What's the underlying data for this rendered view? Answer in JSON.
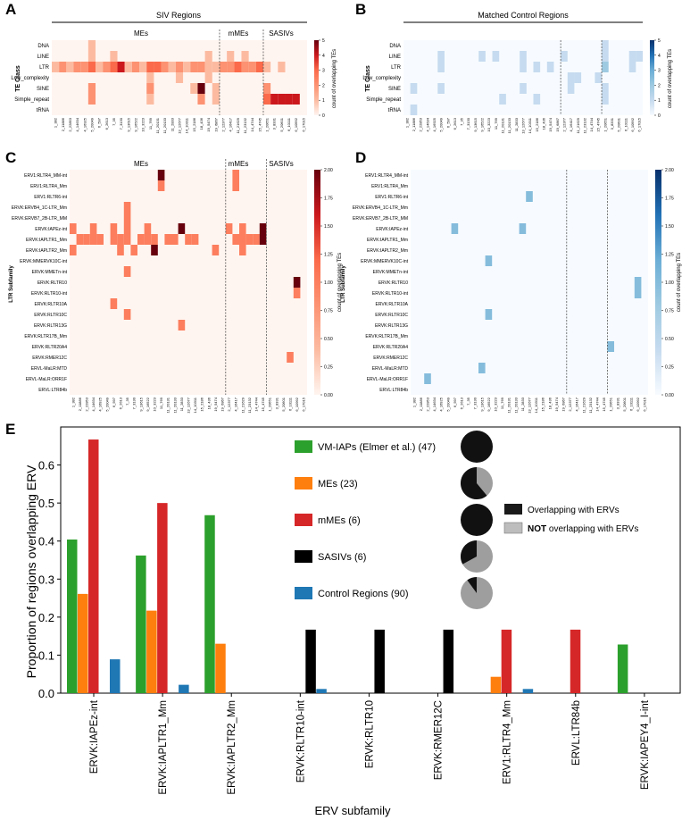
{
  "figure": {
    "panels": {
      "A": {
        "letter": "A",
        "header": "SIV Regions",
        "groups": [
          "MEs",
          "mMEs",
          "SASIVs"
        ],
        "ylabel": "TE Class",
        "cbar_label": "count of overlapping TEs",
        "cbar_ticks": [
          "0",
          "1",
          "2",
          "3",
          "4",
          "5"
        ],
        "cmax": 5,
        "palette": "reds"
      },
      "B": {
        "letter": "B",
        "header": "Matched Control Regions",
        "ylabel": "TE Class",
        "cbar_label": "count of overlapping TEs",
        "cbar_ticks": [
          "0",
          "1",
          "2",
          "3",
          "4",
          "5"
        ],
        "cmax": 5,
        "palette": "blues"
      },
      "C": {
        "letter": "C",
        "groups": [
          "MEs",
          "mMEs",
          "SASIVs"
        ],
        "ylabel": "LTR Subfamily",
        "cbar_label": "count of overlapping TEs",
        "cbar_ticks": [
          "0.00",
          "0.25",
          "0.50",
          "0.75",
          "1.00",
          "1.25",
          "1.50",
          "1.75",
          "2.00"
        ],
        "cmax": 2,
        "palette": "reds"
      },
      "D": {
        "letter": "D",
        "ylabel": "LTR Subfamily",
        "cbar_label": "count of overlapping TEs",
        "cbar_ticks": [
          "0.00",
          "0.25",
          "0.50",
          "0.75",
          "1.00",
          "1.25",
          "1.50",
          "1.75",
          "2.00"
        ],
        "cmax": 2,
        "palette": "blues"
      },
      "E": {
        "letter": "E"
      }
    },
    "legend": {
      "entries": [
        {
          "label": "VM-IAPs (Elmer et al.) (47)",
          "color": "#2ca02c",
          "pie_overlap": 1.0
        },
        {
          "label": "MEs (23)",
          "color": "#ff7f0e",
          "pie_overlap": 0.61
        },
        {
          "label": "mMEs (6)",
          "color": "#d62728",
          "pie_overlap": 1.0
        },
        {
          "label": "SASIVs (6)",
          "color": "#000000",
          "pie_overlap": 0.33
        },
        {
          "label": "Control Regions (90)",
          "color": "#1f77b4",
          "pie_overlap": 0.1
        }
      ],
      "pie_key": [
        {
          "label_plain": "Overlapping with ERVs",
          "label_bold": "",
          "color": "#1a1a1a"
        },
        {
          "label_bold": "NOT",
          "label_plain": " overlapping with ERVs",
          "color": "#bdbdbd"
        }
      ]
    },
    "te_classes": [
      "DNA",
      "LINE",
      "LTR",
      "Low_complexity",
      "SINE",
      "Simple_repeat",
      "tRNA"
    ],
    "te_regions_siv": [
      "1_382",
      "2_11886",
      "2_22853",
      "4_14634",
      "4_16925",
      "5_20049",
      "6_597",
      "6_2613",
      "7_35",
      "7_3130",
      "9_13615",
      "9_16522",
      "10_3223",
      "11_769",
      "11_20131",
      "11_20133",
      "11_2833",
      "13_12677",
      "14_10311",
      "15_2186",
      "18_436",
      "19_5474",
      "19_6867",
      "2_12377",
      "4_16417",
      "11_21629",
      "11_23132",
      "14_4744",
      "15_4745",
      "1_20651",
      "3_8331",
      "5_20601",
      "6_10111",
      "6_10992",
      "6_17015"
    ],
    "te_regions_ctrl": [
      "1_382",
      "2_11886",
      "2_22853",
      "4_14634",
      "4_16925",
      "5_20049",
      "6_597",
      "6_2613",
      "7_35",
      "7_3130",
      "9_13615",
      "9_16522",
      "10_3223",
      "11_769",
      "11_20131",
      "11_20133",
      "11_2833",
      "13_12677",
      "14_10311",
      "15_2186",
      "18_436",
      "19_5474",
      "19_6867",
      "2_12377",
      "4_16417",
      "11_21629",
      "11_23132",
      "14_4744",
      "15_4745",
      "1_20651",
      "3_8331",
      "5_20601",
      "6_10111",
      "6_10992",
      "6_17015"
    ],
    "te_boundaries": [
      23,
      29
    ],
    "heatA": [
      {
        "c": 5,
        "r": 0,
        "v": 1
      },
      {
        "c": 5,
        "r": 1,
        "v": 1
      },
      {
        "c": 8,
        "r": 1,
        "v": 1
      },
      {
        "c": 21,
        "r": 1,
        "v": 1
      },
      {
        "c": 24,
        "r": 1,
        "v": 1
      },
      {
        "c": 26,
        "r": 1,
        "v": 1
      },
      {
        "c": 0,
        "r": 2,
        "v": 1
      },
      {
        "c": 1,
        "r": 2,
        "v": 2
      },
      {
        "c": 2,
        "r": 2,
        "v": 1
      },
      {
        "c": 3,
        "r": 2,
        "v": 2
      },
      {
        "c": 4,
        "r": 2,
        "v": 2
      },
      {
        "c": 5,
        "r": 2,
        "v": 3
      },
      {
        "c": 6,
        "r": 2,
        "v": 1
      },
      {
        "c": 7,
        "r": 2,
        "v": 2
      },
      {
        "c": 8,
        "r": 2,
        "v": 3
      },
      {
        "c": 9,
        "r": 2,
        "v": 4
      },
      {
        "c": 10,
        "r": 2,
        "v": 1
      },
      {
        "c": 11,
        "r": 2,
        "v": 2
      },
      {
        "c": 12,
        "r": 2,
        "v": 1
      },
      {
        "c": 13,
        "r": 2,
        "v": 3
      },
      {
        "c": 14,
        "r": 2,
        "v": 3
      },
      {
        "c": 15,
        "r": 2,
        "v": 2
      },
      {
        "c": 16,
        "r": 2,
        "v": 1
      },
      {
        "c": 17,
        "r": 2,
        "v": 2
      },
      {
        "c": 18,
        "r": 2,
        "v": 1
      },
      {
        "c": 19,
        "r": 2,
        "v": 2
      },
      {
        "c": 20,
        "r": 2,
        "v": 2
      },
      {
        "c": 21,
        "r": 2,
        "v": 1
      },
      {
        "c": 22,
        "r": 2,
        "v": 1
      },
      {
        "c": 23,
        "r": 2,
        "v": 2
      },
      {
        "c": 24,
        "r": 2,
        "v": 2
      },
      {
        "c": 25,
        "r": 2,
        "v": 3
      },
      {
        "c": 26,
        "r": 2,
        "v": 2
      },
      {
        "c": 27,
        "r": 2,
        "v": 2
      },
      {
        "c": 28,
        "r": 2,
        "v": 3
      },
      {
        "c": 29,
        "r": 2,
        "v": 1
      },
      {
        "c": 31,
        "r": 2,
        "v": 1
      },
      {
        "c": 13,
        "r": 3,
        "v": 1
      },
      {
        "c": 17,
        "r": 3,
        "v": 1
      },
      {
        "c": 21,
        "r": 3,
        "v": 1
      },
      {
        "c": 5,
        "r": 4,
        "v": 2
      },
      {
        "c": 13,
        "r": 4,
        "v": 2
      },
      {
        "c": 19,
        "r": 4,
        "v": 1
      },
      {
        "c": 20,
        "r": 4,
        "v": 5
      },
      {
        "c": 22,
        "r": 4,
        "v": 1
      },
      {
        "c": 29,
        "r": 4,
        "v": 2
      },
      {
        "c": 5,
        "r": 5,
        "v": 2
      },
      {
        "c": 13,
        "r": 5,
        "v": 1
      },
      {
        "c": 20,
        "r": 5,
        "v": 2
      },
      {
        "c": 22,
        "r": 5,
        "v": 1
      },
      {
        "c": 29,
        "r": 5,
        "v": 3
      },
      {
        "c": 30,
        "r": 5,
        "v": 4
      },
      {
        "c": 31,
        "r": 5,
        "v": 4
      },
      {
        "c": 32,
        "r": 5,
        "v": 4
      },
      {
        "c": 33,
        "r": 5,
        "v": 4
      }
    ],
    "heatB": [
      {
        "c": 29,
        "r": 0,
        "v": 1
      },
      {
        "c": 5,
        "r": 1,
        "v": 1
      },
      {
        "c": 11,
        "r": 1,
        "v": 1
      },
      {
        "c": 13,
        "r": 1,
        "v": 1
      },
      {
        "c": 17,
        "r": 1,
        "v": 1
      },
      {
        "c": 23,
        "r": 1,
        "v": 1
      },
      {
        "c": 29,
        "r": 1,
        "v": 1
      },
      {
        "c": 33,
        "r": 1,
        "v": 1
      },
      {
        "c": 34,
        "r": 1,
        "v": 1
      },
      {
        "c": 5,
        "r": 2,
        "v": 1
      },
      {
        "c": 17,
        "r": 2,
        "v": 1
      },
      {
        "c": 19,
        "r": 2,
        "v": 1
      },
      {
        "c": 21,
        "r": 2,
        "v": 1
      },
      {
        "c": 29,
        "r": 2,
        "v": 2
      },
      {
        "c": 33,
        "r": 2,
        "v": 1
      },
      {
        "c": 24,
        "r": 3,
        "v": 1
      },
      {
        "c": 25,
        "r": 3,
        "v": 1
      },
      {
        "c": 28,
        "r": 3,
        "v": 1
      },
      {
        "c": 1,
        "r": 4,
        "v": 1
      },
      {
        "c": 5,
        "r": 4,
        "v": 1
      },
      {
        "c": 17,
        "r": 4,
        "v": 1
      },
      {
        "c": 24,
        "r": 4,
        "v": 1
      },
      {
        "c": 29,
        "r": 4,
        "v": 1
      },
      {
        "c": 14,
        "r": 5,
        "v": 1
      },
      {
        "c": 19,
        "r": 5,
        "v": 1
      },
      {
        "c": 29,
        "r": 5,
        "v": 1
      },
      {
        "c": 1,
        "r": 6,
        "v": 1
      }
    ],
    "ltr_subfamilies": [
      "ERV1:RLTR4_MM-int",
      "ERV1:RLTR4_Mm",
      "ERV1:RLTR6-int",
      "ERVK:ERVB4_1C-LTR_Mm",
      "ERVK:ERVB7_2B-LTR_MM",
      "ERVK:IAPEz-int",
      "ERVK:IAPLTR1_Mm",
      "ERVK:IAPLTR2_Mm",
      "ERVK:MMERVK10C-int",
      "ERVK:MMETn-int",
      "ERVK:RLTR10",
      "ERVK:RLTR10-int",
      "ERVK:RLTR10A",
      "ERVK:RLTR10C",
      "ERVK:RLTR13G",
      "ERVK:RLTR17B_Mm",
      "ERVK:RLTR20A4",
      "ERVK:RMER12C",
      "ERVL-MaLR:MTD",
      "ERVL-MaLR:ORR1F",
      "ERVL:LTR84b"
    ],
    "ltr_regions_siv": [
      "1_382",
      "2_11886",
      "2_22853",
      "4_14634",
      "4_16925",
      "5_20049",
      "6_597",
      "6_2613",
      "7_35",
      "7_3130",
      "9_13615",
      "9_16522",
      "10_3223",
      "11_769",
      "11_20131",
      "11_20133",
      "11_2833",
      "13_12677",
      "14_10311",
      "15_2186",
      "18_436",
      "19_5474",
      "19_6867",
      "2_12377",
      "4_16417",
      "11_21629",
      "11_23132",
      "14_4744",
      "15_4745",
      "1_20651",
      "3_8331",
      "5_20601",
      "6_10111",
      "6_10992",
      "6_17015"
    ],
    "ltr_regions_ctrl": [
      "1_382",
      "2_11886",
      "2_22853",
      "4_14634",
      "4_16925",
      "5_20049",
      "6_597",
      "6_2613",
      "7_35",
      "7_3130",
      "9_13615",
      "9_16522",
      "10_3223",
      "11_769",
      "11_20131",
      "11_20133",
      "11_2833",
      "13_12677",
      "14_10311",
      "15_2186",
      "18_436",
      "19_5474",
      "19_6867",
      "2_12377",
      "4_16417",
      "11_21629",
      "11_23132",
      "14_4744",
      "15_4745",
      "1_20651",
      "3_8331",
      "5_20601",
      "6_10111",
      "6_10992",
      "6_17015"
    ],
    "ltr_boundaries": [
      23,
      29
    ],
    "heatC": [
      {
        "c": 13,
        "r": 0,
        "v": 2
      },
      {
        "c": 13,
        "r": 1,
        "v": 1
      },
      {
        "c": 24,
        "r": 0,
        "v": 1
      },
      {
        "c": 24,
        "r": 1,
        "v": 1
      },
      {
        "c": 8,
        "r": 3,
        "v": 1
      },
      {
        "c": 8,
        "r": 4,
        "v": 1
      },
      {
        "c": 0,
        "r": 5,
        "v": 1
      },
      {
        "c": 3,
        "r": 5,
        "v": 1
      },
      {
        "c": 6,
        "r": 5,
        "v": 1
      },
      {
        "c": 8,
        "r": 5,
        "v": 1
      },
      {
        "c": 11,
        "r": 5,
        "v": 1
      },
      {
        "c": 16,
        "r": 5,
        "v": 2
      },
      {
        "c": 23,
        "r": 5,
        "v": 1
      },
      {
        "c": 25,
        "r": 5,
        "v": 1
      },
      {
        "c": 28,
        "r": 5,
        "v": 2
      },
      {
        "c": 1,
        "r": 6,
        "v": 1
      },
      {
        "c": 2,
        "r": 6,
        "v": 1
      },
      {
        "c": 3,
        "r": 6,
        "v": 1
      },
      {
        "c": 4,
        "r": 6,
        "v": 1
      },
      {
        "c": 6,
        "r": 6,
        "v": 1
      },
      {
        "c": 7,
        "r": 6,
        "v": 1
      },
      {
        "c": 8,
        "r": 6,
        "v": 1
      },
      {
        "c": 10,
        "r": 6,
        "v": 1
      },
      {
        "c": 11,
        "r": 6,
        "v": 1
      },
      {
        "c": 12,
        "r": 6,
        "v": 1
      },
      {
        "c": 14,
        "r": 6,
        "v": 1
      },
      {
        "c": 15,
        "r": 6,
        "v": 1
      },
      {
        "c": 17,
        "r": 6,
        "v": 1
      },
      {
        "c": 18,
        "r": 6,
        "v": 1
      },
      {
        "c": 24,
        "r": 6,
        "v": 1
      },
      {
        "c": 25,
        "r": 6,
        "v": 1
      },
      {
        "c": 26,
        "r": 6,
        "v": 1
      },
      {
        "c": 27,
        "r": 6,
        "v": 1
      },
      {
        "c": 28,
        "r": 6,
        "v": 2
      },
      {
        "c": 0,
        "r": 7,
        "v": 1
      },
      {
        "c": 7,
        "r": 7,
        "v": 1
      },
      {
        "c": 9,
        "r": 7,
        "v": 1
      },
      {
        "c": 12,
        "r": 7,
        "v": 2
      },
      {
        "c": 21,
        "r": 7,
        "v": 1
      },
      {
        "c": 25,
        "r": 7,
        "v": 1
      },
      {
        "c": 8,
        "r": 9,
        "v": 1
      },
      {
        "c": 33,
        "r": 10,
        "v": 2
      },
      {
        "c": 33,
        "r": 11,
        "v": 1
      },
      {
        "c": 6,
        "r": 12,
        "v": 1
      },
      {
        "c": 8,
        "r": 13,
        "v": 1
      },
      {
        "c": 16,
        "r": 14,
        "v": 1
      },
      {
        "c": 32,
        "r": 17,
        "v": 1
      }
    ],
    "heatD": [
      {
        "c": 17,
        "r": 2,
        "v": 1
      },
      {
        "c": 6,
        "r": 5,
        "v": 1
      },
      {
        "c": 16,
        "r": 5,
        "v": 1
      },
      {
        "c": 11,
        "r": 8,
        "v": 1
      },
      {
        "c": 33,
        "r": 10,
        "v": 1
      },
      {
        "c": 33,
        "r": 11,
        "v": 1
      },
      {
        "c": 11,
        "r": 13,
        "v": 1
      },
      {
        "c": 29,
        "r": 16,
        "v": 1
      },
      {
        "c": 10,
        "r": 18,
        "v": 1
      },
      {
        "c": 2,
        "r": 19,
        "v": 1
      }
    ],
    "chart_data": [
      {
        "type": "heatmap",
        "panel": "A",
        "title": "SIV Regions",
        "ylabel": "TE Class",
        "colorbar_label": "count of overlapping TEs",
        "colorbar_range": [
          0,
          5
        ],
        "groups": [
          {
            "name": "MEs",
            "columns": [
              0,
              22
            ]
          },
          {
            "name": "mMEs",
            "columns": [
              23,
              28
            ]
          },
          {
            "name": "SASIVs",
            "columns": [
              29,
              34
            ]
          }
        ]
      },
      {
        "type": "heatmap",
        "panel": "B",
        "title": "Matched Control Regions",
        "ylabel": "TE Class",
        "colorbar_label": "count of overlapping TEs",
        "colorbar_range": [
          0,
          5
        ]
      },
      {
        "type": "heatmap",
        "panel": "C",
        "ylabel": "LTR Subfamily",
        "colorbar_label": "count of overlapping TEs",
        "colorbar_range": [
          0,
          2
        ]
      },
      {
        "type": "heatmap",
        "panel": "D",
        "ylabel": "LTR Subfamily",
        "colorbar_label": "count of overlapping TEs",
        "colorbar_range": [
          0,
          2
        ]
      },
      {
        "type": "bar",
        "panel": "E",
        "xlabel": "ERV subfamily",
        "ylabel": "Proportion of regions overlapping ERV",
        "ylim": [
          0,
          0.7
        ],
        "yticks": [
          "0.0",
          "0.1",
          "0.2",
          "0.3",
          "0.4",
          "0.5",
          "0.6"
        ],
        "categories": [
          "ERVK:IAPEz-int",
          "ERVK:IAPLTR1_Mm",
          "ERVK:IAPLTR2_Mm",
          "ERVK:RLTR10-int",
          "ERVK:RLTR10",
          "ERVK:RMER12C",
          "ERV1:RLTR4_Mm",
          "ERVL:LTR84b",
          "ERVK:IAPEY4_I-int"
        ],
        "series": [
          {
            "name": "VM-IAPs (Elmer et al.)",
            "color": "#2ca02c",
            "values": [
              0.404,
              0.362,
              0.468,
              0,
              0,
              0,
              0,
              0,
              0.128
            ]
          },
          {
            "name": "MEs",
            "color": "#ff7f0e",
            "values": [
              0.261,
              0.217,
              0.13,
              0,
              0,
              0,
              0.043,
              0,
              0
            ]
          },
          {
            "name": "mMEs",
            "color": "#d62728",
            "values": [
              0.667,
              0.5,
              0,
              0,
              0,
              0,
              0.167,
              0.167,
              0
            ]
          },
          {
            "name": "SASIVs",
            "color": "#000000",
            "values": [
              0,
              0,
              0,
              0.167,
              0.167,
              0.167,
              0,
              0,
              0
            ]
          },
          {
            "name": "Control Regions",
            "color": "#1f77b4",
            "values": [
              0.089,
              0.022,
              0,
              0.011,
              0,
              0,
              0.011,
              0,
              0
            ]
          }
        ]
      }
    ]
  }
}
